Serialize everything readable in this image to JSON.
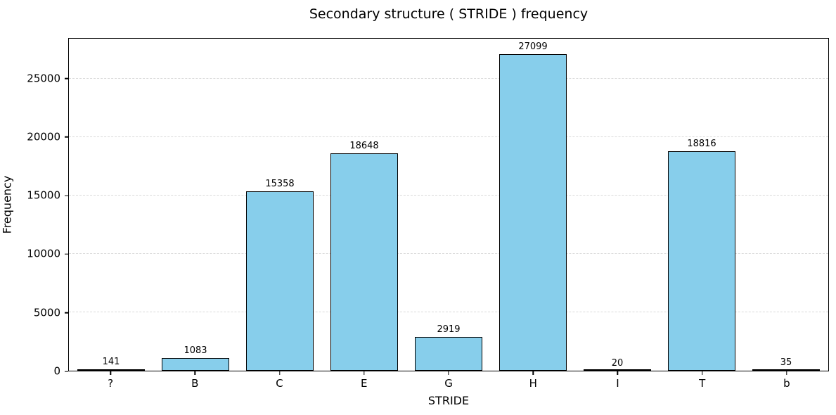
{
  "title": "Secondary structure ( STRIDE ) frequency",
  "chart_data": {
    "type": "bar",
    "categories": [
      "?",
      "B",
      "C",
      "E",
      "G",
      "H",
      "I",
      "T",
      "b"
    ],
    "values": [
      141,
      1083,
      15358,
      18648,
      2919,
      27099,
      20,
      18816,
      35
    ],
    "bar_value_labels": [
      "141",
      "1083",
      "15358",
      "18648",
      "2919",
      "27099",
      "20",
      "18816",
      "35"
    ],
    "title": "Secondary structure ( STRIDE ) frequency",
    "xlabel": "STRIDE",
    "ylabel": "Frequency",
    "ylim": [
      0,
      28454
    ],
    "yticks": [
      0,
      5000,
      10000,
      15000,
      20000,
      25000
    ],
    "ytick_labels": [
      "0",
      "5000",
      "10000",
      "15000",
      "20000",
      "25000"
    ],
    "bar_color": "#87CEEB",
    "bar_edge_color": "#000000",
    "grid": true,
    "grid_style": "dashed",
    "grid_color": "#d9d9d9",
    "legend": false
  }
}
